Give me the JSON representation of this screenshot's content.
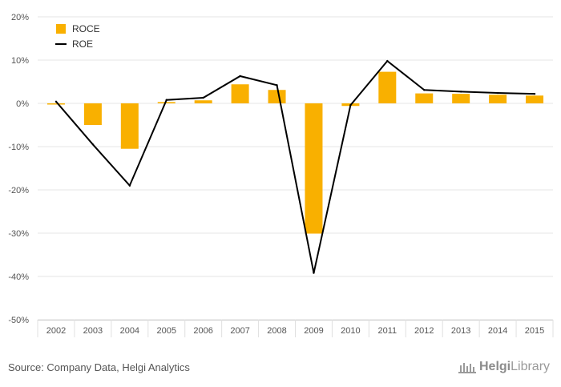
{
  "chart_data": {
    "type": "bar",
    "categories": [
      "2002",
      "2003",
      "2004",
      "2005",
      "2006",
      "2007",
      "2008",
      "2009",
      "2010",
      "2011",
      "2012",
      "2013",
      "2014",
      "2015"
    ],
    "series": [
      {
        "name": "ROCE",
        "type": "bar",
        "color": "#f9b000",
        "values": [
          -0.2,
          -5.0,
          -10.5,
          0.3,
          0.7,
          4.4,
          3.1,
          -30.1,
          -0.6,
          7.3,
          2.3,
          2.2,
          2.0,
          1.8
        ]
      },
      {
        "name": "ROE",
        "type": "line",
        "color": "#000000",
        "values": [
          0.4,
          -9.5,
          -19.0,
          0.8,
          1.3,
          6.3,
          4.2,
          -39.2,
          -0.4,
          9.8,
          3.1,
          2.7,
          2.4,
          2.2
        ]
      }
    ],
    "y_ticks": [
      "20%",
      "10%",
      "0%",
      "-10%",
      "-20%",
      "-30%",
      "-40%",
      "-50%"
    ],
    "ylim": [
      -50,
      20
    ],
    "grid": true,
    "legend": "top-left"
  },
  "footer": {
    "source": "Source: Company Data, Helgi Analytics",
    "brand_prefix": "Helgi",
    "brand_suffix": "Library"
  }
}
